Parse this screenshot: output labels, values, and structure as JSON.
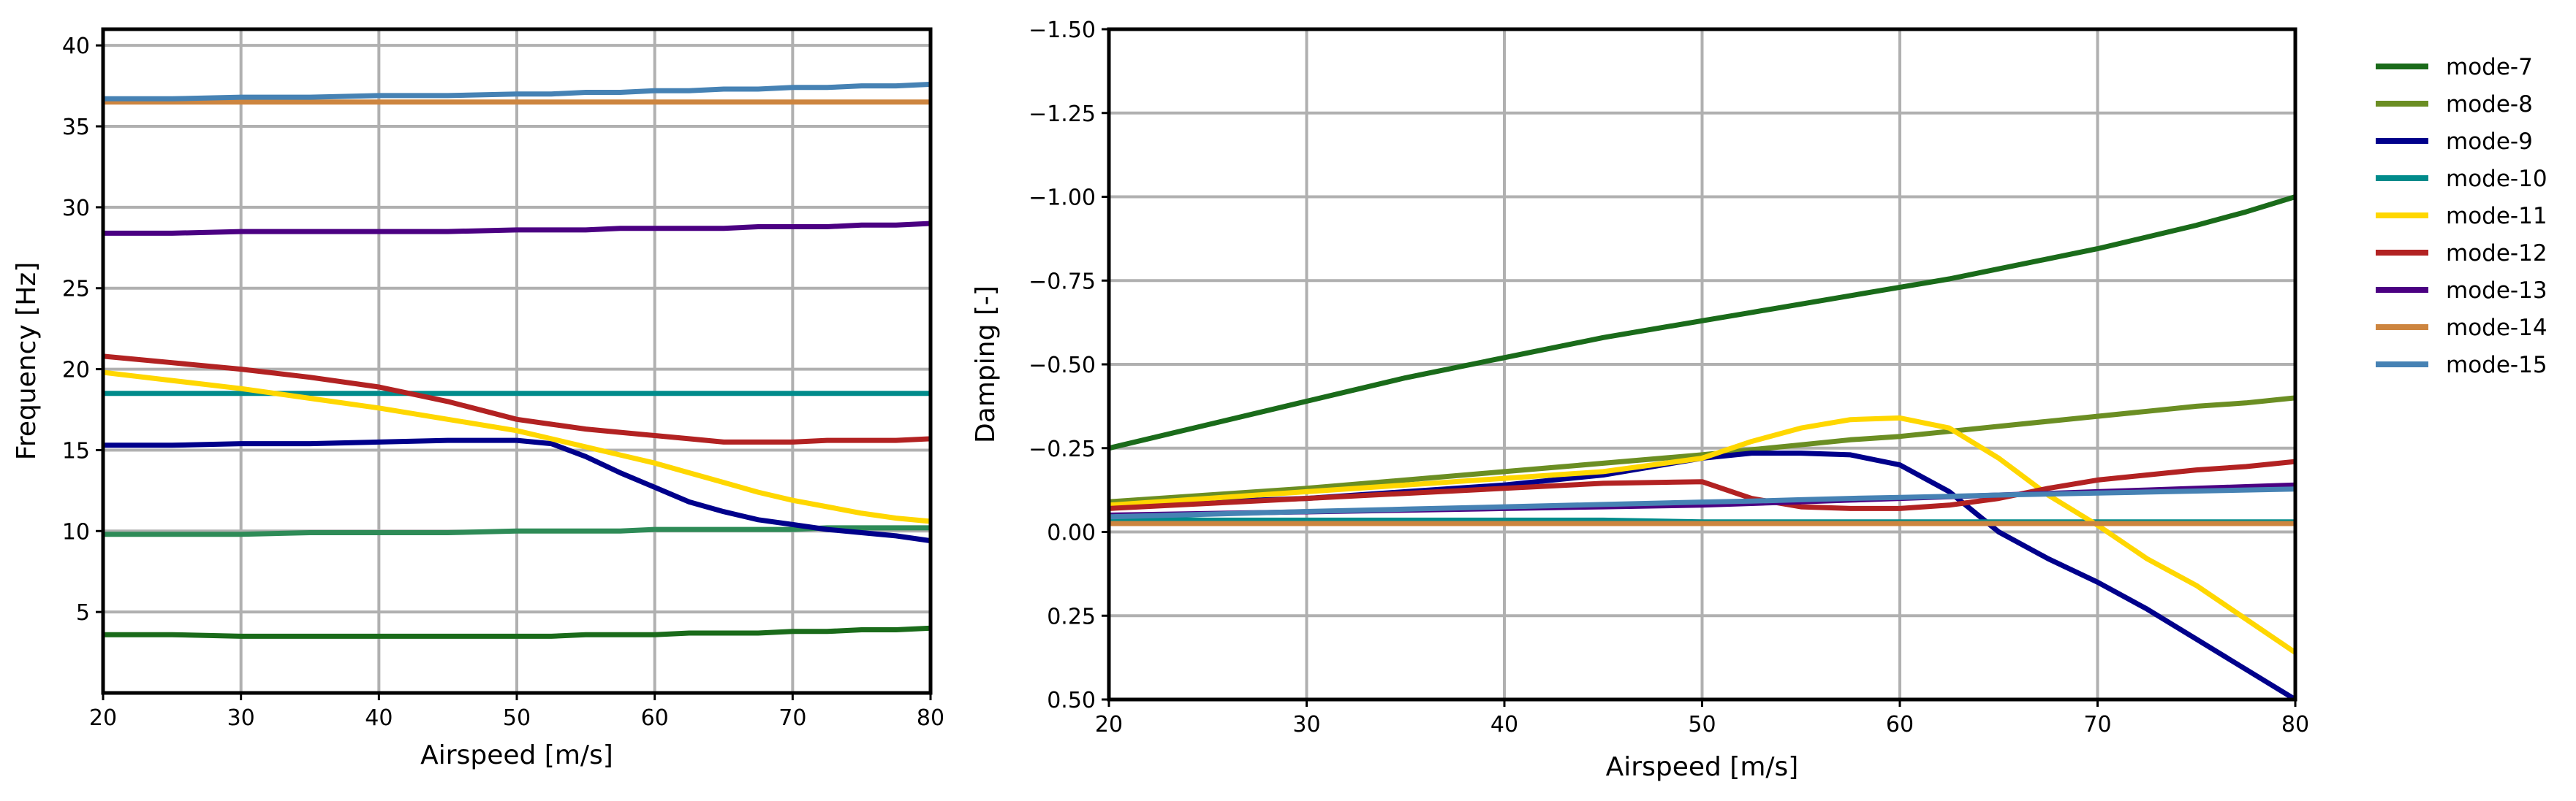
{
  "chart_data": [
    {
      "type": "line",
      "id": "frequency",
      "title": "",
      "xlabel": "Airspeed [m/s]",
      "ylabel": "Frequency [Hz]",
      "xlim": [
        20,
        80
      ],
      "ylim": [
        0,
        41
      ],
      "xticks": [
        20,
        30,
        40,
        50,
        60,
        70,
        80
      ],
      "yticks": [
        5,
        10,
        15,
        20,
        25,
        30,
        35,
        40
      ],
      "x": [
        20,
        25,
        30,
        35,
        40,
        45,
        50,
        52.5,
        55,
        57.5,
        60,
        62.5,
        65,
        67.5,
        70,
        72.5,
        75,
        77.5,
        80
      ],
      "grid": true,
      "series": [
        {
          "name": "mode-7",
          "values": [
            3.6,
            3.6,
            3.5,
            3.5,
            3.5,
            3.5,
            3.5,
            3.5,
            3.6,
            3.6,
            3.6,
            3.7,
            3.7,
            3.7,
            3.8,
            3.8,
            3.9,
            3.9,
            4.0
          ]
        },
        {
          "name": "mode-8",
          "values": [
            9.8,
            9.8,
            9.8,
            9.9,
            9.9,
            9.9,
            10.0,
            10.0,
            10.0,
            10.0,
            10.1,
            10.1,
            10.1,
            10.1,
            10.1,
            10.2,
            10.2,
            10.2,
            10.2
          ]
        },
        {
          "name": "mode-9",
          "values": [
            15.3,
            15.3,
            15.4,
            15.4,
            15.5,
            15.6,
            15.6,
            15.4,
            14.6,
            13.6,
            12.7,
            11.8,
            11.2,
            10.7,
            10.4,
            10.1,
            9.9,
            9.7,
            9.4
          ]
        },
        {
          "name": "mode-10",
          "values": [
            18.5,
            18.5,
            18.5,
            18.5,
            18.5,
            18.5,
            18.5,
            18.5,
            18.5,
            18.5,
            18.5,
            18.5,
            18.5,
            18.5,
            18.5,
            18.5,
            18.5,
            18.5,
            18.5
          ]
        },
        {
          "name": "mode-11",
          "values": [
            19.8,
            19.3,
            18.8,
            18.2,
            17.6,
            16.9,
            16.2,
            15.7,
            15.2,
            14.7,
            14.2,
            13.6,
            13.0,
            12.4,
            11.9,
            11.5,
            11.1,
            10.8,
            10.6
          ]
        },
        {
          "name": "mode-12",
          "values": [
            20.8,
            20.4,
            20.0,
            19.5,
            18.9,
            18.0,
            16.9,
            16.6,
            16.3,
            16.1,
            15.9,
            15.7,
            15.5,
            15.5,
            15.5,
            15.6,
            15.6,
            15.6,
            15.7
          ]
        },
        {
          "name": "mode-13",
          "values": [
            28.4,
            28.4,
            28.5,
            28.5,
            28.5,
            28.5,
            28.6,
            28.6,
            28.6,
            28.7,
            28.7,
            28.7,
            28.7,
            28.8,
            28.8,
            28.8,
            28.9,
            28.9,
            29.0
          ]
        },
        {
          "name": "mode-14",
          "values": [
            36.5,
            36.5,
            36.5,
            36.5,
            36.5,
            36.5,
            36.5,
            36.5,
            36.5,
            36.5,
            36.5,
            36.5,
            36.5,
            36.5,
            36.5,
            36.5,
            36.5,
            36.5,
            36.5
          ]
        },
        {
          "name": "mode-15",
          "values": [
            36.7,
            36.7,
            36.8,
            36.8,
            36.9,
            36.9,
            37.0,
            37.0,
            37.1,
            37.1,
            37.2,
            37.2,
            37.3,
            37.3,
            37.4,
            37.4,
            37.5,
            37.5,
            37.6
          ]
        }
      ]
    },
    {
      "type": "line",
      "id": "damping",
      "title": "",
      "xlabel": "Airspeed [m/s]",
      "ylabel": "Damping [-]",
      "xlim": [
        20,
        80
      ],
      "ylim": [
        0.5,
        -1.5
      ],
      "xticks": [
        20,
        30,
        40,
        50,
        60,
        70,
        80
      ],
      "yticks": [
        -1.5,
        -1.25,
        -1.0,
        -0.75,
        -0.5,
        -0.25,
        0.0,
        0.25,
        0.5
      ],
      "ytick_labels": [
        "−1.50",
        "−1.25",
        "−1.00",
        "−0.75",
        "−0.50",
        "−0.25",
        "0.00",
        "0.25",
        "0.50"
      ],
      "x": [
        20,
        25,
        30,
        35,
        40,
        45,
        50,
        52.5,
        55,
        57.5,
        60,
        62.5,
        65,
        67.5,
        70,
        72.5,
        75,
        77.5,
        80
      ],
      "grid": true,
      "series": [
        {
          "name": "mode-7",
          "values": [
            -0.25,
            -0.32,
            -0.39,
            -0.46,
            -0.52,
            -0.58,
            -0.63,
            -0.655,
            -0.68,
            -0.705,
            -0.73,
            -0.755,
            -0.785,
            -0.815,
            -0.845,
            -0.88,
            -0.915,
            -0.955,
            -1.0
          ]
        },
        {
          "name": "mode-8",
          "values": [
            -0.09,
            -0.11,
            -0.13,
            -0.155,
            -0.18,
            -0.205,
            -0.23,
            -0.245,
            -0.26,
            -0.275,
            -0.285,
            -0.3,
            -0.315,
            -0.33,
            -0.345,
            -0.36,
            -0.375,
            -0.385,
            -0.4
          ]
        },
        {
          "name": "mode-9",
          "values": [
            -0.08,
            -0.09,
            -0.1,
            -0.12,
            -0.14,
            -0.17,
            -0.22,
            -0.235,
            -0.235,
            -0.23,
            -0.2,
            -0.12,
            0.0,
            0.08,
            0.15,
            0.23,
            0.32,
            0.41,
            0.5
          ]
        },
        {
          "name": "mode-10",
          "values": [
            -0.04,
            -0.035,
            -0.035,
            -0.035,
            -0.035,
            -0.035,
            -0.03,
            -0.03,
            -0.03,
            -0.03,
            -0.03,
            -0.03,
            -0.03,
            -0.03,
            -0.03,
            -0.03,
            -0.03,
            -0.03,
            -0.03
          ]
        },
        {
          "name": "mode-11",
          "values": [
            -0.08,
            -0.1,
            -0.12,
            -0.14,
            -0.16,
            -0.18,
            -0.22,
            -0.27,
            -0.31,
            -0.335,
            -0.34,
            -0.31,
            -0.22,
            -0.11,
            -0.02,
            0.08,
            0.16,
            0.26,
            0.36
          ]
        },
        {
          "name": "mode-12",
          "values": [
            -0.07,
            -0.085,
            -0.1,
            -0.115,
            -0.13,
            -0.145,
            -0.15,
            -0.1,
            -0.075,
            -0.07,
            -0.07,
            -0.08,
            -0.1,
            -0.13,
            -0.155,
            -0.17,
            -0.185,
            -0.195,
            -0.21
          ]
        },
        {
          "name": "mode-13",
          "values": [
            -0.05,
            -0.055,
            -0.06,
            -0.065,
            -0.07,
            -0.075,
            -0.08,
            -0.085,
            -0.09,
            -0.095,
            -0.1,
            -0.105,
            -0.11,
            -0.115,
            -0.12,
            -0.125,
            -0.13,
            -0.135,
            -0.14
          ]
        },
        {
          "name": "mode-14",
          "values": [
            -0.025,
            -0.025,
            -0.025,
            -0.025,
            -0.025,
            -0.025,
            -0.025,
            -0.025,
            -0.025,
            -0.025,
            -0.025,
            -0.025,
            -0.025,
            -0.025,
            -0.025,
            -0.025,
            -0.025,
            -0.025,
            -0.025
          ]
        },
        {
          "name": "mode-15",
          "values": [
            -0.045,
            -0.053,
            -0.061,
            -0.068,
            -0.075,
            -0.082,
            -0.089,
            -0.092,
            -0.096,
            -0.1,
            -0.103,
            -0.106,
            -0.11,
            -0.113,
            -0.116,
            -0.119,
            -0.122,
            -0.125,
            -0.128
          ]
        }
      ]
    }
  ],
  "legend": {
    "placement": "right",
    "entries": [
      {
        "label": "mode-7",
        "color": "#1a6b1a"
      },
      {
        "label": "mode-8",
        "color": "#6b8e23"
      },
      {
        "label": "mode-9",
        "color": "#00008b"
      },
      {
        "label": "mode-10",
        "color": "#008b8b"
      },
      {
        "label": "mode-11",
        "color": "#ffd700"
      },
      {
        "label": "mode-12",
        "color": "#b22222"
      },
      {
        "label": "mode-13",
        "color": "#4b0082"
      },
      {
        "label": "mode-14",
        "color": "#cd853f"
      },
      {
        "label": "mode-15",
        "color": "#4682b4"
      }
    ]
  },
  "colors": {
    "freq_mode-8": "#2e8b57",
    "grid": "#b0b0b0",
    "axes": "#000000"
  }
}
